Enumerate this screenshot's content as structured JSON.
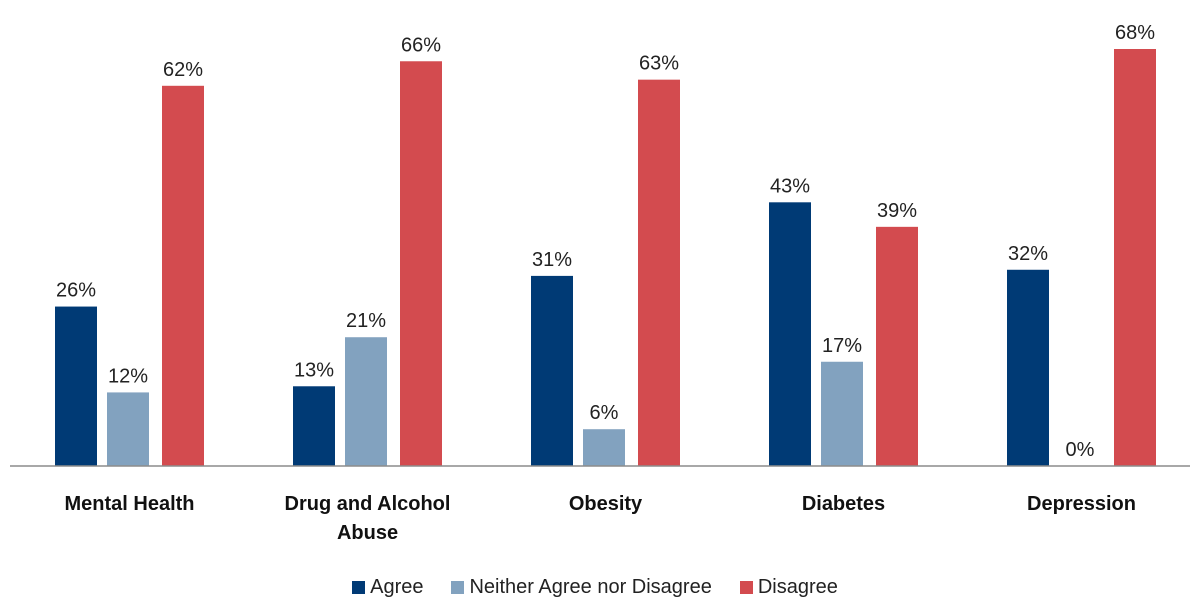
{
  "chart_data": {
    "type": "bar",
    "categories": [
      [
        "Mental Health"
      ],
      [
        "Drug and Alcohol",
        "Abuse"
      ],
      [
        "Obesity"
      ],
      [
        "Diabetes"
      ],
      [
        "Depression"
      ]
    ],
    "series": [
      {
        "name": "Agree",
        "color": "#003a75",
        "values": [
          26,
          13,
          31,
          43,
          32
        ],
        "labels": [
          "26%",
          "13%",
          "31%",
          "43%",
          "32%"
        ]
      },
      {
        "name": "Neither Agree nor Disagree",
        "color": "#82a2bf",
        "values": [
          12,
          21,
          6,
          17,
          0
        ],
        "labels": [
          "12%",
          "21%",
          "6%",
          "17%",
          "0%"
        ]
      },
      {
        "name": "Disagree",
        "color": "#d34b4f",
        "values": [
          62,
          66,
          63,
          39,
          68
        ],
        "labels": [
          "62%",
          "66%",
          "63%",
          "39%",
          "68%"
        ]
      }
    ],
    "ylim": [
      0,
      68
    ],
    "grid": false,
    "legend_position": "bottom"
  }
}
